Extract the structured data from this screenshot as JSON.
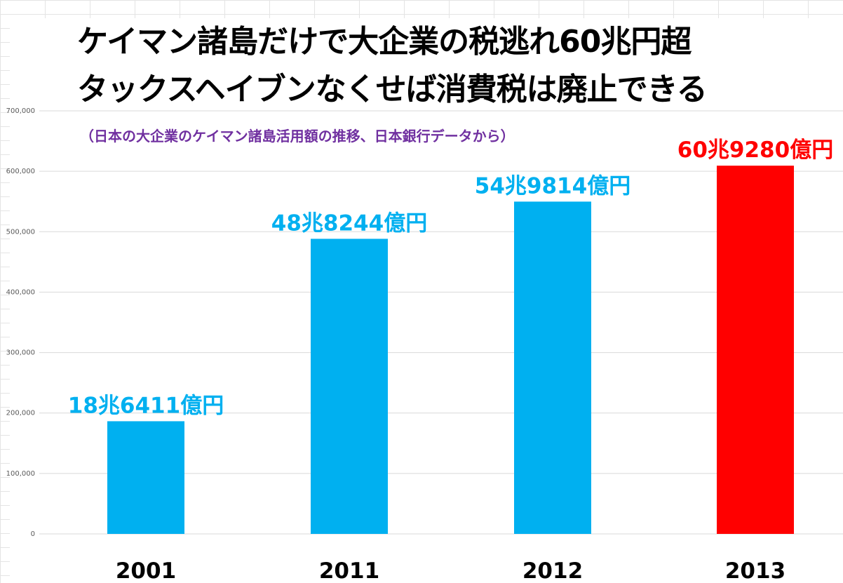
{
  "title_lines": [
    "ケイマン諸島だけで大企業の税逃れ60兆円超",
    "タックスヘイブンなくせば消費税は廃止できる"
  ],
  "subtitle": "（日本の大企業のケイマン諸島活用額の推移、日本銀行データから）",
  "chart_data": {
    "type": "bar",
    "categories": [
      "2001",
      "2011",
      "2012",
      "2013"
    ],
    "values": [
      186411,
      488244,
      549814,
      609280
    ],
    "data_labels": [
      "18兆6411億円",
      "48兆8244億円",
      "54兆9814億円",
      "60兆9280億円"
    ],
    "bar_colors": [
      "#00b0f0",
      "#00b0f0",
      "#00b0f0",
      "#ff0000"
    ],
    "label_colors": [
      "#00b0f0",
      "#00b0f0",
      "#00b0f0",
      "#ff0000"
    ],
    "ylim": [
      0,
      700000
    ],
    "yticks": [
      0,
      100000,
      200000,
      300000,
      400000,
      500000,
      600000,
      700000
    ],
    "ytick_labels": [
      "0",
      "100,000",
      "200,000",
      "300,000",
      "400,000",
      "500,000",
      "600,000",
      "700,000"
    ],
    "grid": true,
    "xlabel": "",
    "ylabel": ""
  }
}
